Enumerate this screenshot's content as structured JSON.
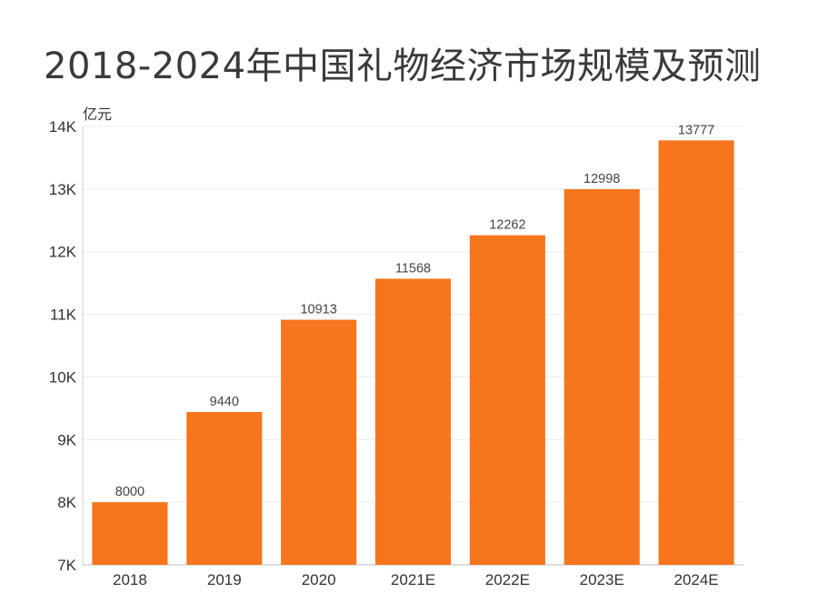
{
  "chart_data": {
    "type": "bar",
    "title": "2018-2024年中国礼物经济市场规模及预测",
    "unit": "亿元",
    "categories": [
      "2018",
      "2019",
      "2020",
      "2021E",
      "2022E",
      "2023E",
      "2024E"
    ],
    "values": [
      8000,
      9440,
      10913,
      11568,
      12262,
      12998,
      13777
    ],
    "data_labels": [
      "8000",
      "9440",
      "10913",
      "11568",
      "12262",
      "12998",
      "13777"
    ],
    "ylim": [
      7000,
      14000
    ],
    "yticks": [
      7000,
      8000,
      9000,
      10000,
      11000,
      12000,
      13000,
      14000
    ],
    "ytick_labels": [
      "7K",
      "8K",
      "9K",
      "10K",
      "11K",
      "12K",
      "13K",
      "14K"
    ],
    "xlabel": "",
    "ylabel": "亿元",
    "grid": true,
    "bar_color": "#f7751c"
  }
}
